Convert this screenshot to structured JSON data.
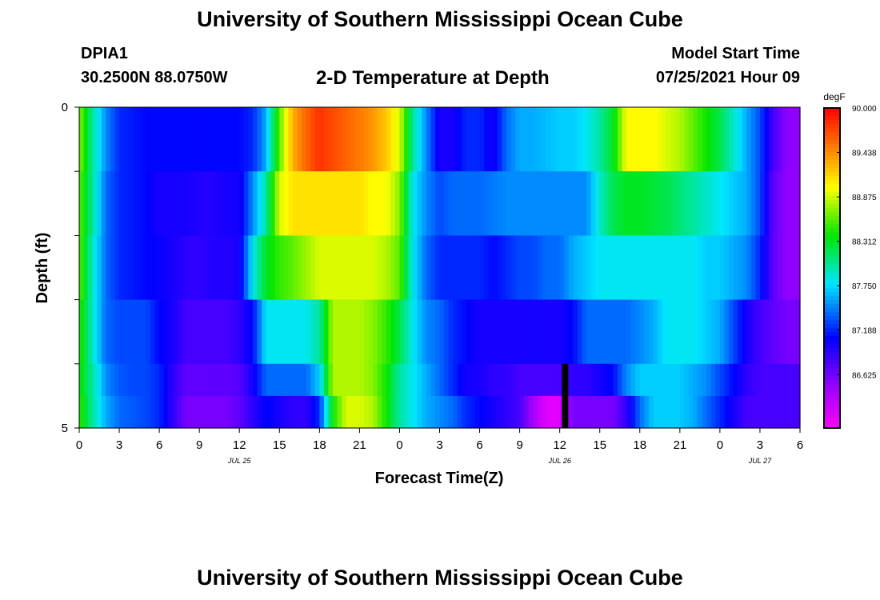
{
  "header": {
    "title": "University of Southern Mississippi Ocean Cube",
    "station_id": "DPIA1",
    "station_coords": "30.2500N  88.0750W",
    "plot_title": "2-D Temperature at Depth",
    "model_start_label": "Model Start Time",
    "model_start_value": "07/25/2021 Hour 09"
  },
  "footer": {
    "title": "University of Southern Mississippi Ocean Cube"
  },
  "chart_data": {
    "type": "heatmap",
    "title": "2-D Temperature at Depth",
    "xlabel": "Forecast Time(Z)",
    "ylabel": "Depth (ft)",
    "x_tick_labels": [
      "0",
      "3",
      "6",
      "9",
      "12",
      "15",
      "18",
      "21",
      "0",
      "3",
      "6",
      "9",
      "12",
      "15",
      "18",
      "21",
      "0",
      "3",
      "6"
    ],
    "x_date_labels": [
      {
        "label": "JUL 25",
        "hour": 12
      },
      {
        "label": "JUL 26",
        "hour": 36
      },
      {
        "label": "JUL 27",
        "hour": 51
      }
    ],
    "x_range_hours": [
      0,
      54
    ],
    "y_tick_labels": [
      "0",
      "5"
    ],
    "ylim": [
      0,
      5
    ],
    "y_reversed": true,
    "colorbar": {
      "units": "degF",
      "min": 85.95,
      "max": 90.0,
      "tick_labels": [
        "90.000",
        "89.438",
        "88.875",
        "88.312",
        "87.750",
        "87.188",
        "86.625"
      ]
    },
    "time_hours": [
      0,
      1,
      2,
      3,
      4,
      5,
      6,
      7,
      8,
      9,
      10,
      11,
      12,
      13,
      14,
      15,
      16,
      17,
      18,
      19,
      20,
      21,
      22,
      23,
      24,
      25,
      26,
      27,
      28,
      29,
      30,
      31,
      32,
      33,
      34,
      35,
      36,
      37,
      38,
      39,
      40,
      41,
      42,
      43,
      44,
      45,
      46,
      47,
      48,
      49,
      50,
      51,
      52,
      53,
      54
    ],
    "depth_rows": [
      {
        "depth": 0,
        "values": [
          88.7,
          88.0,
          87.5,
          87.2,
          87.15,
          87.1,
          87.1,
          87.1,
          87.1,
          87.1,
          87.1,
          87.1,
          87.1,
          87.2,
          87.6,
          88.6,
          89.3,
          89.6,
          89.8,
          89.7,
          89.6,
          89.5,
          89.4,
          89.2,
          88.9,
          88.0,
          87.5,
          87.0,
          87.0,
          87.2,
          87.2,
          87.0,
          87.4,
          87.6,
          87.6,
          87.65,
          87.7,
          87.7,
          87.8,
          88.0,
          88.3,
          89.0,
          89.0,
          89.0,
          88.9,
          88.8,
          88.6,
          88.4,
          88.2,
          87.9,
          87.6,
          87.3,
          86.8,
          86.5,
          86.5
        ]
      },
      {
        "depth": 1,
        "values": [
          88.6,
          88.0,
          87.4,
          87.2,
          87.15,
          87.1,
          87.0,
          87.0,
          87.0,
          86.95,
          86.95,
          87.0,
          87.0,
          87.5,
          88.0,
          88.9,
          89.1,
          89.1,
          89.1,
          89.1,
          89.1,
          89.1,
          89.0,
          89.0,
          88.7,
          87.8,
          87.5,
          87.3,
          87.4,
          87.4,
          87.4,
          87.45,
          87.5,
          87.5,
          87.5,
          87.5,
          87.5,
          87.5,
          87.5,
          87.9,
          88.2,
          88.3,
          88.3,
          88.25,
          88.2,
          88.1,
          88.0,
          87.9,
          87.8,
          87.7,
          87.6,
          87.3,
          86.7,
          86.5,
          86.5
        ]
      },
      {
        "depth": 2,
        "values": [
          88.6,
          87.9,
          87.4,
          87.2,
          87.15,
          87.1,
          87.05,
          87.0,
          86.9,
          86.9,
          86.95,
          86.95,
          87.0,
          87.8,
          88.3,
          88.5,
          88.6,
          88.75,
          88.9,
          88.9,
          88.9,
          88.9,
          88.9,
          88.8,
          88.6,
          87.8,
          87.4,
          87.2,
          87.2,
          87.2,
          87.2,
          87.1,
          87.2,
          87.3,
          87.3,
          87.4,
          87.4,
          87.6,
          87.7,
          87.8,
          87.8,
          87.8,
          87.8,
          87.8,
          87.8,
          87.8,
          87.8,
          87.7,
          87.7,
          87.6,
          87.5,
          87.2,
          86.7,
          86.5,
          86.5
        ]
      },
      {
        "depth": 3,
        "values": [
          88.5,
          87.9,
          87.4,
          87.3,
          87.3,
          87.3,
          87.1,
          87.0,
          86.8,
          86.8,
          86.8,
          86.8,
          86.9,
          87.1,
          87.8,
          87.8,
          87.8,
          87.8,
          88.0,
          88.8,
          88.8,
          88.8,
          88.7,
          88.5,
          88.2,
          87.8,
          87.5,
          87.4,
          87.2,
          87.1,
          87.0,
          87.0,
          87.0,
          87.0,
          87.0,
          87.0,
          87.0,
          87.1,
          87.4,
          87.4,
          87.4,
          87.4,
          87.5,
          87.6,
          87.8,
          87.8,
          87.8,
          87.7,
          87.6,
          87.3,
          87.0,
          86.8,
          86.7,
          86.6,
          86.6
        ]
      },
      {
        "depth": 4,
        "values": [
          88.4,
          88.0,
          87.5,
          87.35,
          87.3,
          87.3,
          87.2,
          86.9,
          86.7,
          86.7,
          86.7,
          86.7,
          86.75,
          87.0,
          87.4,
          87.4,
          87.4,
          87.4,
          87.7,
          88.8,
          88.8,
          88.8,
          88.7,
          88.4,
          88.0,
          87.8,
          87.6,
          87.4,
          87.2,
          87.0,
          87.0,
          86.9,
          86.9,
          86.8,
          86.8,
          86.8,
          86.8,
          86.9,
          86.9,
          87.0,
          87.1,
          87.5,
          87.7,
          87.7,
          87.7,
          87.7,
          87.6,
          87.5,
          87.3,
          87.1,
          86.9,
          86.8,
          86.8,
          86.8,
          86.8
        ]
      },
      {
        "depth": 4.5,
        "values": [
          88.5,
          88.0,
          87.6,
          87.4,
          87.35,
          87.3,
          87.2,
          86.9,
          86.6,
          86.6,
          86.6,
          86.6,
          86.7,
          86.9,
          87.1,
          87.0,
          86.9,
          86.9,
          87.2,
          88.4,
          88.9,
          88.9,
          88.8,
          88.4,
          88.0,
          87.8,
          87.6,
          87.5,
          87.4,
          87.2,
          87.1,
          87.0,
          86.9,
          86.8,
          86.4,
          86.1,
          86.1,
          86.6,
          86.6,
          86.6,
          86.6,
          86.9,
          87.4,
          87.7,
          87.7,
          87.7,
          87.6,
          87.4,
          87.2,
          87.0,
          86.8,
          86.8,
          86.8,
          86.8,
          86.8
        ]
      }
    ],
    "marker": {
      "hour": 36.4,
      "depth_from": 4,
      "depth_to": 5
    }
  }
}
